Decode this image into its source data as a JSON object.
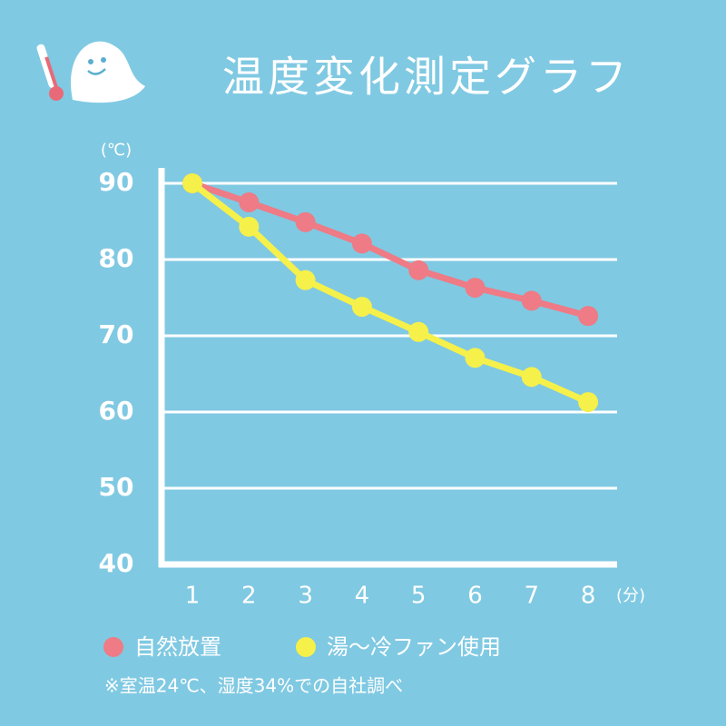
{
  "chart_data": {
    "type": "line",
    "title": "温度変化測定グラフ",
    "y_unit": "(℃)",
    "x_unit": "(分)",
    "note": "※室温24℃、湿度34%での自社調べ",
    "categories": [
      "1",
      "2",
      "3",
      "4",
      "5",
      "6",
      "7",
      "8"
    ],
    "series": [
      {
        "name": "自然放置",
        "color": "#ee7b85",
        "values": [
          90,
          87.5,
          84.9,
          82.1,
          78.6,
          76.3,
          74.6,
          72.6
        ]
      },
      {
        "name": "湯〜冷ファン使用",
        "color": "#f5f04a",
        "values": [
          90,
          84.3,
          77.3,
          73.8,
          70.5,
          67.1,
          64.6,
          61.3
        ]
      }
    ],
    "ylim": [
      40,
      90
    ],
    "yticks": [
      40,
      50,
      60,
      70,
      80,
      90
    ],
    "grid": true
  }
}
